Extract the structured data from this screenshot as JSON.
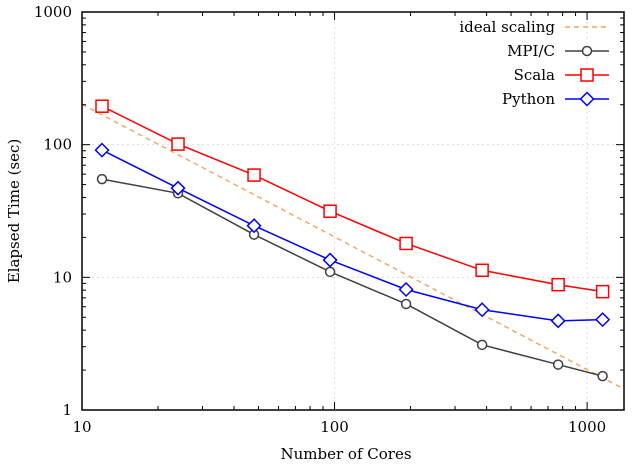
{
  "chart_data": {
    "type": "line",
    "xscale": "log",
    "yscale": "log",
    "xlim": [
      10,
      1400
    ],
    "ylim": [
      1,
      1000
    ],
    "xlabel": "Number of Cores",
    "ylabel": "Elapsed Time (sec)",
    "xticks": [
      10,
      100,
      1000
    ],
    "xtick_labels": [
      "10",
      "100",
      "1000"
    ],
    "yticks": [
      1,
      10,
      100,
      1000
    ],
    "ytick_labels": [
      "1",
      "10",
      "100",
      "1000"
    ],
    "grid": true,
    "legend_position": "top-right",
    "x": [
      12,
      24,
      48,
      96,
      192,
      384,
      768,
      1152
    ],
    "series": [
      {
        "name": "ideal scaling",
        "style": "dashed",
        "marker": "none",
        "color": "#f4a460",
        "x": [
          10,
          1400
        ],
        "values": [
          201.6,
          1.44
        ]
      },
      {
        "name": "MPI/C",
        "marker": "circle",
        "color": "#404040",
        "values": [
          55,
          43,
          21,
          11,
          6.3,
          3.1,
          2.2,
          1.8
        ]
      },
      {
        "name": "Scala",
        "marker": "square",
        "color": "#ff0000",
        "values": [
          195,
          101,
          59,
          31.5,
          18,
          11.3,
          8.8,
          7.8
        ]
      },
      {
        "name": "Python",
        "marker": "diamond",
        "color": "#0000ff",
        "values": [
          91,
          47,
          24.5,
          13.5,
          8.1,
          5.7,
          4.7,
          4.8
        ]
      }
    ]
  }
}
